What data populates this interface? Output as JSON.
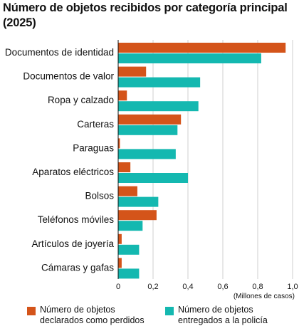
{
  "chart_data": {
    "type": "bar",
    "orientation": "horizontal",
    "title": "Número de objetos recibidos por categoría principal (2025)",
    "categories": [
      "Documentos de identidad",
      "Documentos de valor",
      "Ropa y calzado",
      "Carteras",
      "Paraguas",
      "Aparatos eléctricos",
      "Bolsos",
      "Teléfonos móviles",
      "Artículos de joyería",
      "Cámaras y gafas"
    ],
    "series": [
      {
        "name": "Número de objetos declarados como perdidos",
        "color": "#d4541a",
        "values": [
          0.96,
          0.16,
          0.05,
          0.36,
          0.01,
          0.07,
          0.11,
          0.22,
          0.02,
          0.02
        ]
      },
      {
        "name": "Número de objetos entregados a la policía",
        "color": "#14b8b0",
        "values": [
          0.82,
          0.47,
          0.46,
          0.34,
          0.33,
          0.4,
          0.23,
          0.14,
          0.12,
          0.12
        ]
      }
    ],
    "xlim": [
      0,
      1.0
    ],
    "xticks": [
      {
        "value": 0,
        "label": "0"
      },
      {
        "value": 0.2,
        "label": "0,2"
      },
      {
        "value": 0.4,
        "label": "0,4"
      },
      {
        "value": 0.6,
        "label": "0,6"
      },
      {
        "value": 0.8,
        "label": "0,8"
      },
      {
        "value": 1.0,
        "label": "1,0"
      }
    ],
    "unit_label": "(Millones de casos)",
    "grid": true,
    "legend_position": "bottom"
  }
}
